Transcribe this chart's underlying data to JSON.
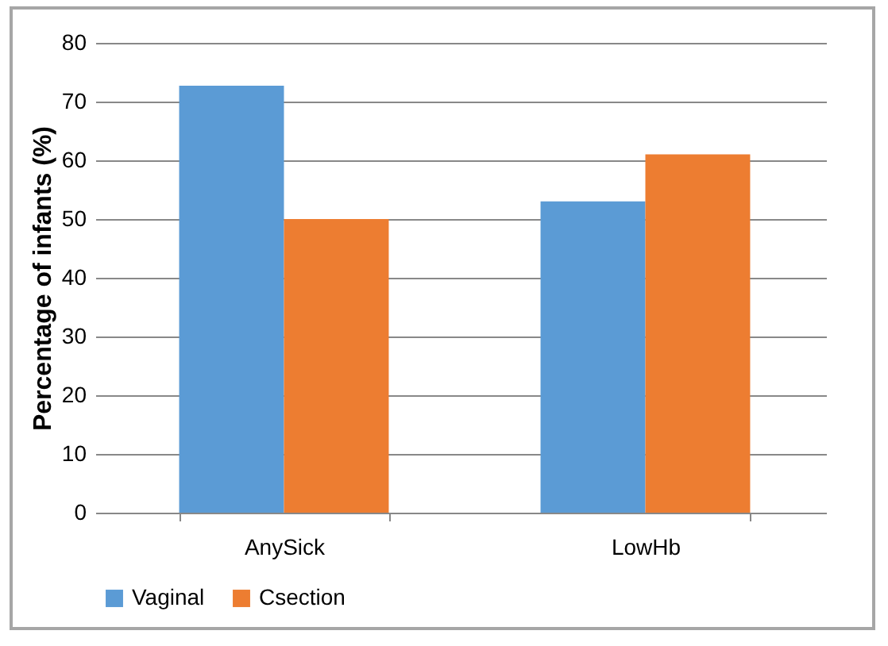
{
  "chart_data": {
    "type": "bar",
    "ylabel": "Percentage of infants (%)",
    "categories": [
      "AnySick",
      "LowHb"
    ],
    "series": [
      {
        "name": "Vaginal",
        "color": "#5b9bd5",
        "values": [
          72.7,
          53
        ]
      },
      {
        "name": "Csection",
        "color": "#ed7d31",
        "values": [
          50,
          61
        ]
      }
    ],
    "ylim": [
      0,
      80
    ],
    "yticks": [
      0,
      10,
      20,
      30,
      40,
      50,
      60,
      70,
      80
    ],
    "grid": "y",
    "legend": "bottom"
  }
}
